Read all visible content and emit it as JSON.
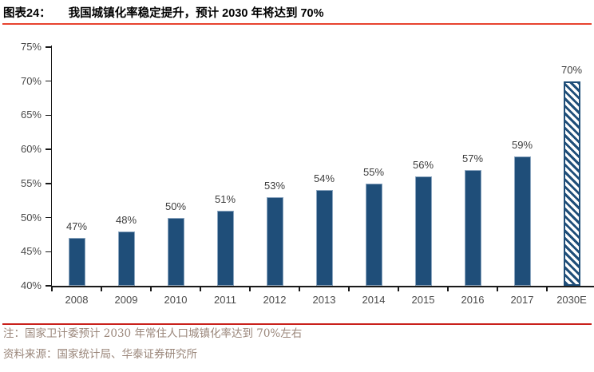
{
  "header": {
    "figure_label": "图表24：",
    "title": "我国城镇化率稳定提升，预计 2030 年将达到 70%"
  },
  "chart_data": {
    "type": "bar",
    "title": "我国城镇化率稳定提升，预计 2030 年将达到 70%",
    "categories": [
      "2008",
      "2009",
      "2010",
      "2011",
      "2012",
      "2013",
      "2014",
      "2015",
      "2016",
      "2017",
      "2030E"
    ],
    "values": [
      47,
      48,
      50,
      51,
      53,
      54,
      55,
      56,
      57,
      59,
      70
    ],
    "data_labels": [
      "47%",
      "48%",
      "50%",
      "51%",
      "53%",
      "54%",
      "55%",
      "56%",
      "57%",
      "59%",
      "70%"
    ],
    "xlabel": "",
    "ylabel": "",
    "ylim": [
      40,
      75
    ],
    "ytick_step": 5,
    "ytick_labels": [
      "40%",
      "45%",
      "50%",
      "55%",
      "60%",
      "65%",
      "70%",
      "75%"
    ],
    "unit": "%",
    "grid": false,
    "legend": "none",
    "bar_style": {
      "solid_color": "#1F4E79",
      "forecast_category": "2030E",
      "forecast_pattern": "diagonal-hatch"
    }
  },
  "footer": {
    "note": "注：国家卫计委预计 2030 年常住人口城镇化率达到 70%左右",
    "source": "资料来源：国家统计局、华泰证券研究所"
  },
  "colors": {
    "bar": "#1F4E79",
    "title_rule": "#E8432F",
    "footer_rule": "#C9211C",
    "axis": "#1a1a1a",
    "tick_label": "#4a4a4a",
    "value_label": "#3d3d3d",
    "note_text": "#9a867a"
  }
}
